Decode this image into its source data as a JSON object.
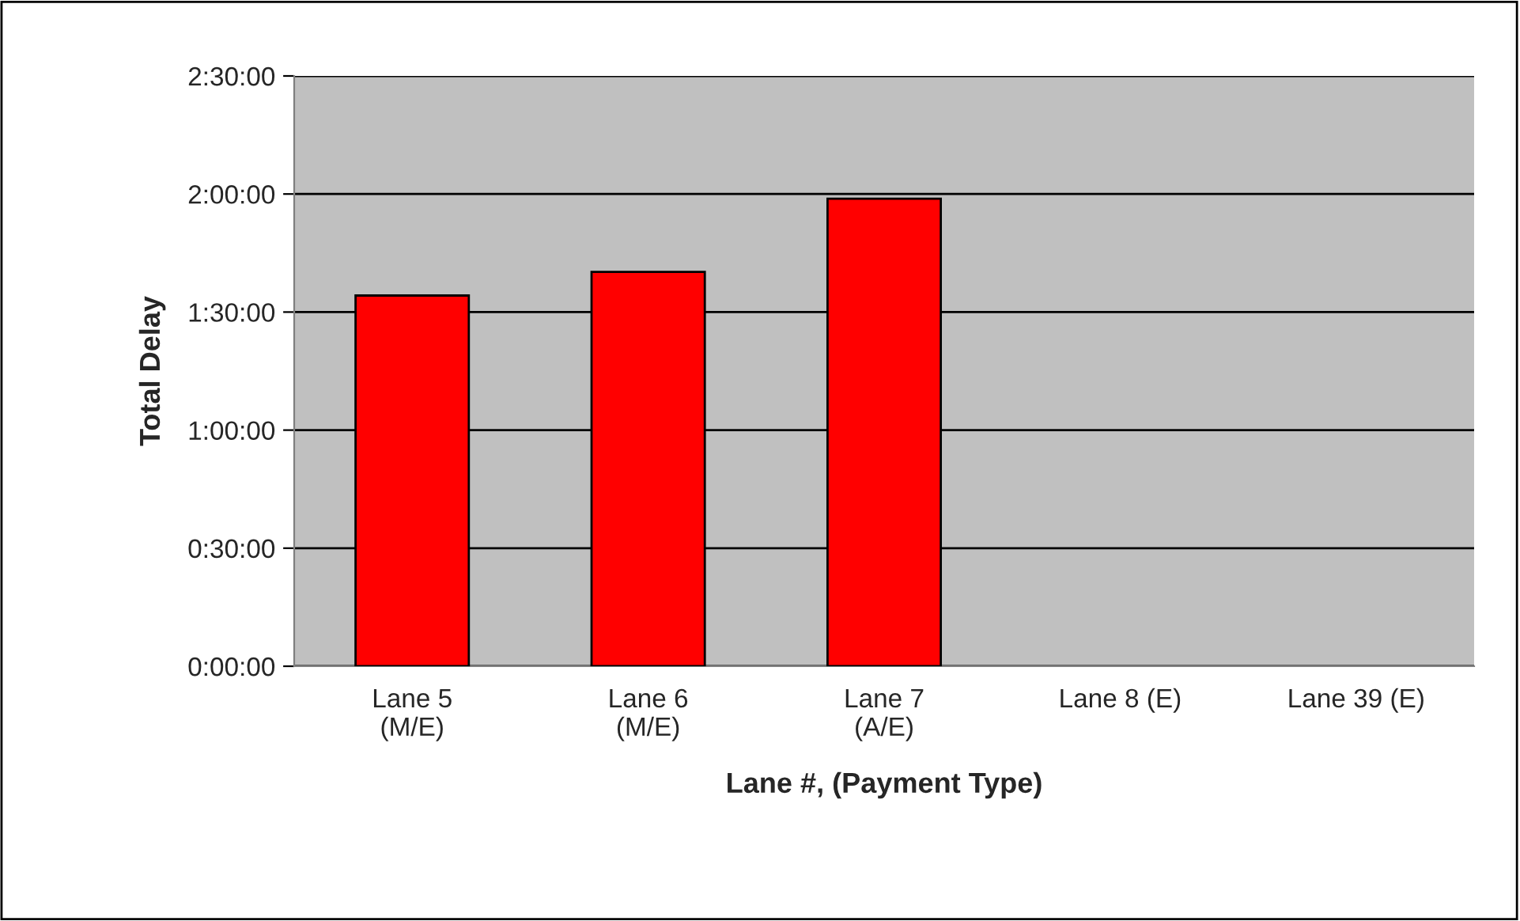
{
  "chart_data": {
    "type": "bar",
    "xlabel": "Lane #, (Payment Type)",
    "ylabel": "Total Delay",
    "categories": [
      "Lane 5\n(M/E)",
      "Lane 6\n(M/E)",
      "Lane 7\n(A/E)",
      "Lane 8 (E)",
      "Lane 39 (E)"
    ],
    "series": [
      {
        "color": "#ff0000",
        "values": [
          1.57,
          1.67,
          1.98,
          null,
          null
        ]
      }
    ],
    "ylim": [
      0,
      2.5
    ],
    "yticks": [
      {
        "value": 0,
        "label": "0:00:00"
      },
      {
        "value": 0.5,
        "label": "0:30:00"
      },
      {
        "value": 1,
        "label": "1:00:00"
      },
      {
        "value": 1.5,
        "label": "1:30:00"
      },
      {
        "value": 2,
        "label": "2:00:00"
      },
      {
        "value": 2.5,
        "label": "2:30:00"
      }
    ],
    "grid": "y",
    "legend": false
  }
}
